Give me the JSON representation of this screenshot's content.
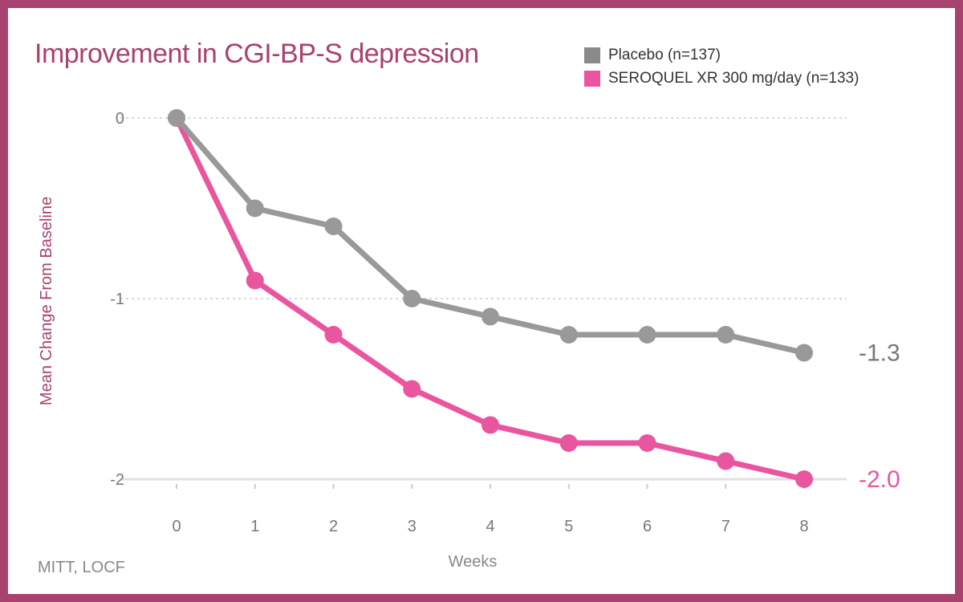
{
  "chart_data": {
    "type": "line",
    "title": "Improvement in CGI-BP-S depression",
    "xlabel": "Weeks",
    "ylabel": "Mean Change From Baseline",
    "x": [
      0,
      1,
      2,
      3,
      4,
      5,
      6,
      7,
      8
    ],
    "x_tick_labels": [
      "0",
      "1",
      "2",
      "3",
      "4",
      "5",
      "6",
      "7",
      "8"
    ],
    "y_ticks": [
      0,
      -1,
      -2
    ],
    "y_tick_labels": [
      "0",
      "-1",
      "-2"
    ],
    "ylim": [
      -2,
      0
    ],
    "grid": "horizontal dotted",
    "legend_position": "top-right",
    "series": [
      {
        "name": "Placebo (n=137)",
        "color": "#8a8a8a",
        "line_color": "#999999",
        "values": [
          0,
          -0.5,
          -0.6,
          -1.0,
          -1.1,
          -1.2,
          -1.2,
          -1.2,
          -1.3
        ],
        "end_label": "-1.3"
      },
      {
        "name": "SEROQUEL XR 300 mg/day (n=133)",
        "color": "#ea559f",
        "line_color": "#ea559f",
        "values": [
          0,
          -0.9,
          -1.2,
          -1.5,
          -1.7,
          -1.8,
          -1.8,
          -1.9,
          -2.0
        ],
        "end_label": "-2.0"
      }
    ],
    "footnote": "MITT, LOCF"
  },
  "colors": {
    "frame": "#a8426f",
    "accent": "#a8426f",
    "tick_text": "#777777",
    "grid": "#cccccc",
    "baseline": "#e0e0e0"
  }
}
